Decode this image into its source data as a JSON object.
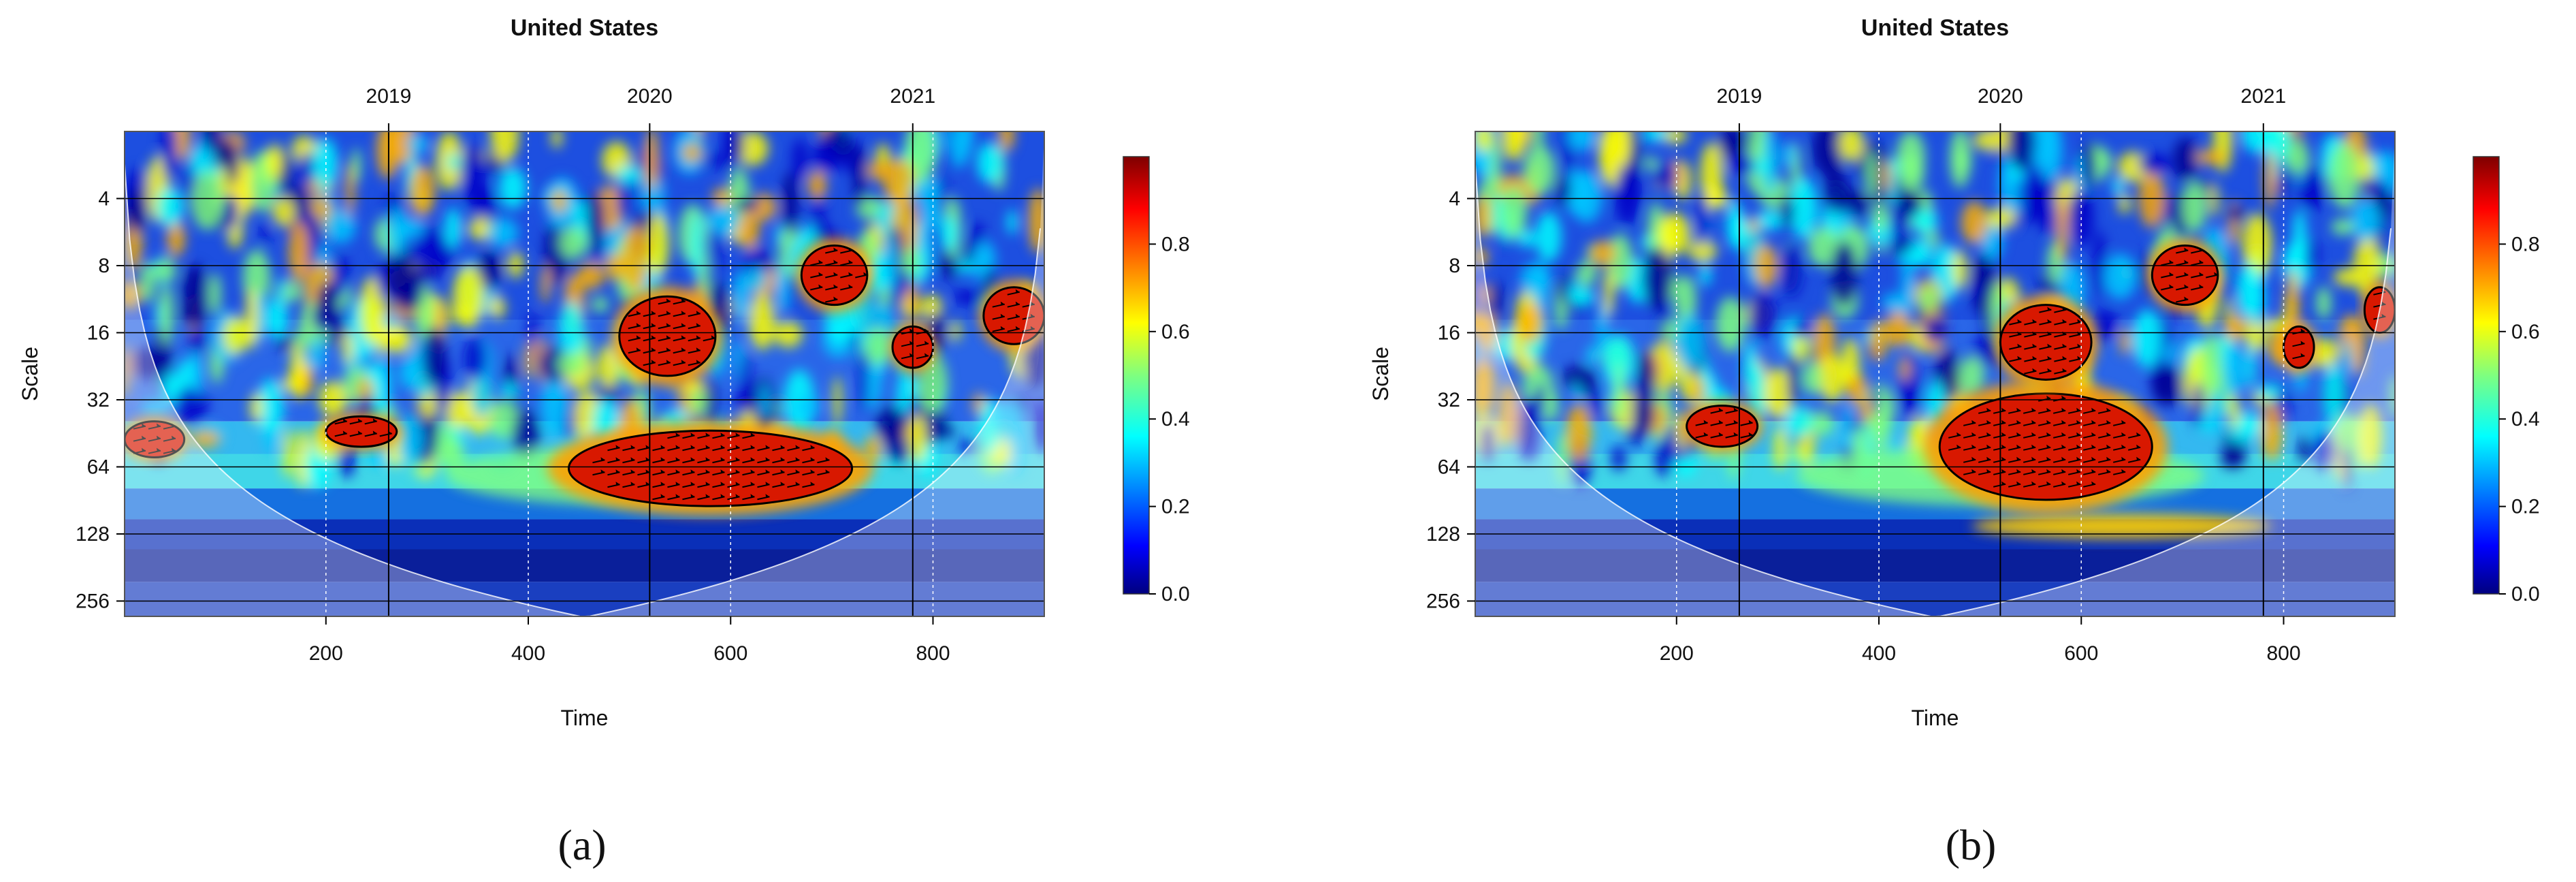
{
  "chart_data": [
    {
      "type": "heatmap",
      "caption": "(a)",
      "title": "United States",
      "xlabel": "Time",
      "ylabel": "Scale",
      "x_ticks": [
        200,
        400,
        600,
        800
      ],
      "xlim": [
        1,
        910
      ],
      "y_ticks": [
        4,
        8,
        16,
        32,
        64,
        128,
        256
      ],
      "ylim": [
        2,
        300
      ],
      "y_scale": "log2-reversed",
      "top_ticks": [
        {
          "label": "2019",
          "x": 262
        },
        {
          "label": "2020",
          "x": 520
        },
        {
          "label": "2021",
          "x": 780
        }
      ],
      "colorbar": {
        "range": [
          0,
          1
        ],
        "ticks": [
          "0.0",
          "0.2",
          "0.4",
          "0.6",
          "0.8"
        ]
      },
      "cone_of_influence": true,
      "significant_regions": [
        {
          "time": [
            440,
            720
          ],
          "scale": [
            44,
            96
          ],
          "period_center": 60
        },
        {
          "time": [
            490,
            585
          ],
          "scale": [
            11,
            25
          ],
          "period_center": 16
        },
        {
          "time": [
            670,
            735
          ],
          "scale": [
            6.5,
            12
          ],
          "period_center": 9
        },
        {
          "time": [
            850,
            910
          ],
          "scale": [
            10,
            18
          ],
          "period_center": 13
        },
        {
          "time": [
            200,
            270
          ],
          "scale": [
            38,
            52
          ],
          "period_center": 45
        },
        {
          "time": [
            760,
            800
          ],
          "scale": [
            15,
            23
          ],
          "period_center": 18
        },
        {
          "time": [
            1,
            60
          ],
          "scale": [
            40,
            58
          ],
          "period_center": 48
        }
      ]
    },
    {
      "type": "heatmap",
      "caption": "(b)",
      "title": "United States",
      "xlabel": "Time",
      "ylabel": "Scale",
      "x_ticks": [
        200,
        400,
        600,
        800
      ],
      "xlim": [
        1,
        910
      ],
      "y_ticks": [
        4,
        8,
        16,
        32,
        64,
        128,
        256
      ],
      "ylim": [
        2,
        300
      ],
      "y_scale": "log2-reversed",
      "top_ticks": [
        {
          "label": "2019",
          "x": 262
        },
        {
          "label": "2020",
          "x": 520
        },
        {
          "label": "2021",
          "x": 780
        }
      ],
      "colorbar": {
        "range": [
          0,
          1
        ],
        "ticks": [
          "0.0",
          "0.2",
          "0.4",
          "0.6",
          "0.8"
        ]
      },
      "cone_of_influence": true,
      "significant_regions": [
        {
          "time": [
            460,
            670
          ],
          "scale": [
            30,
            90
          ],
          "period_center": 52
        },
        {
          "time": [
            520,
            610
          ],
          "scale": [
            12,
            26
          ],
          "period_center": 16
        },
        {
          "time": [
            670,
            735
          ],
          "scale": [
            6.5,
            12
          ],
          "period_center": 9
        },
        {
          "time": [
            210,
            280
          ],
          "scale": [
            34,
            52
          ],
          "period_center": 42
        },
        {
          "time": [
            800,
            830
          ],
          "scale": [
            15,
            23
          ],
          "period_center": 18
        },
        {
          "time": [
            880,
            910
          ],
          "scale": [
            10,
            16
          ],
          "period_center": 12
        }
      ]
    }
  ]
}
